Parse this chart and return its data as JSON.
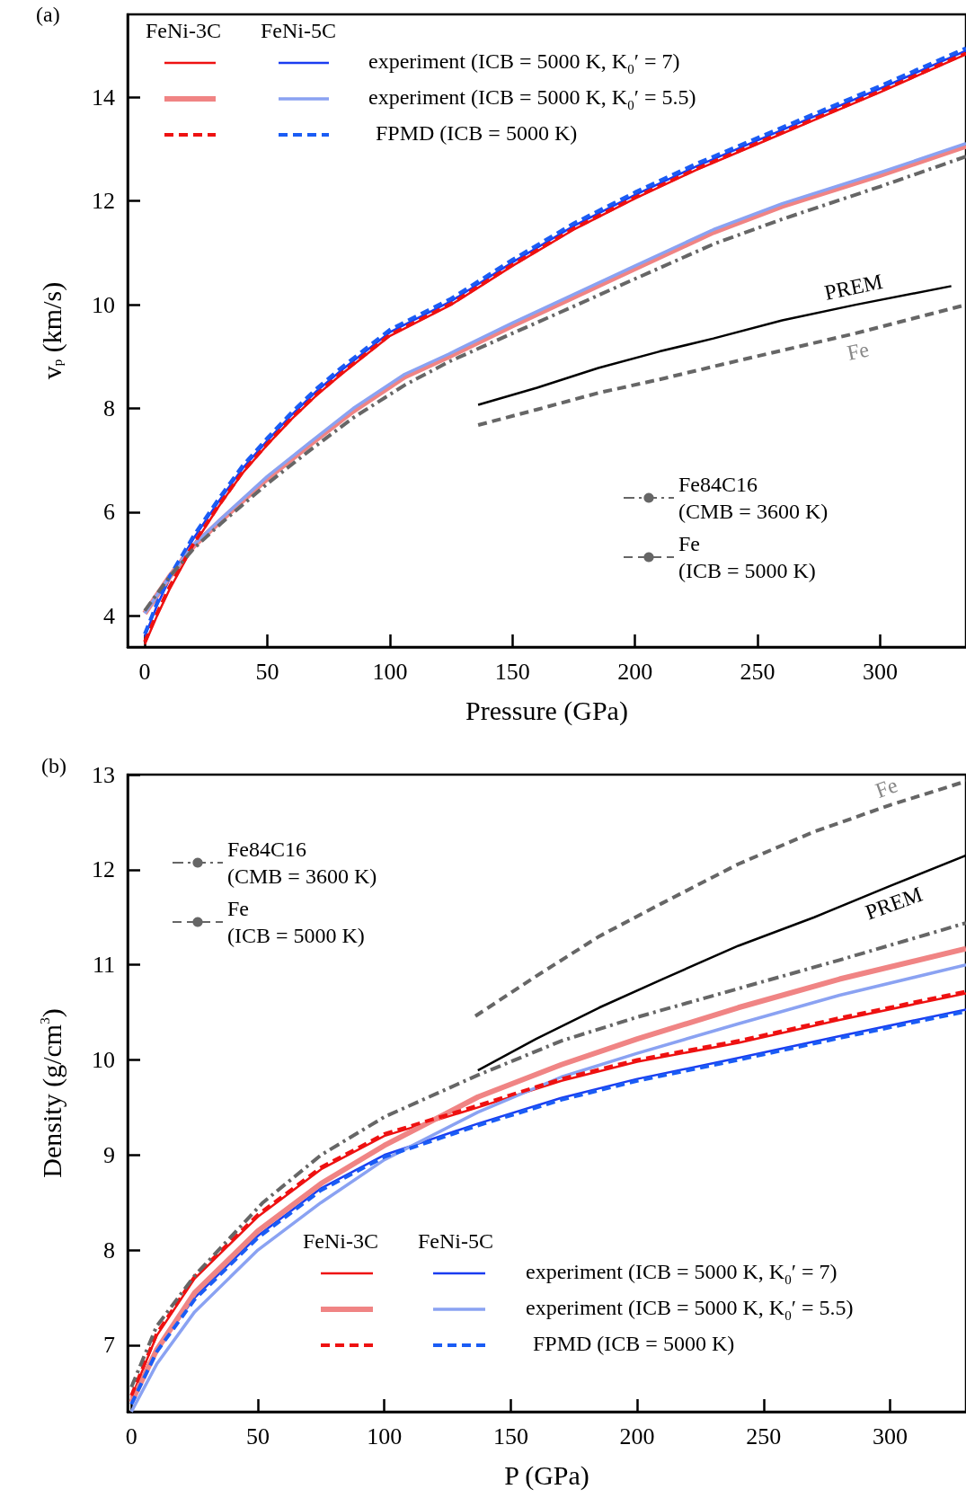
{
  "chart_data": [
    {
      "type": "line",
      "xlabel": "Pressure (GPa)",
      "ylabel": "v$_{p}$ (km/s)",
      "xlim": [
        -7,
        335
      ],
      "ylim": [
        3.4,
        15.6
      ],
      "xticks": [
        0,
        50,
        100,
        150,
        200,
        250,
        300
      ],
      "yticks": [
        4,
        6,
        8,
        10,
        12,
        14
      ],
      "grid": false,
      "marker": "none",
      "legend": "bottom right",
      "annotations": [
        "(a)",
        "FeNi-3C",
        "FeNi-5C",
        "experiment (ICB = 5000 K, K$_{0}$′ = 7)",
        "experiment (ICB = 5000 K, K$_{0}$′ = 5.5)",
        "FPMD (ICB = 5000 K)",
        "(CMB = 3600 K)",
        "(ICB = 5000 K)"
      ],
      "series": [
        {
          "color": "#ee1111",
          "line_style": "solid",
          "x": [
            0,
            5,
            10,
            20,
            30,
            40,
            50,
            60,
            70,
            80,
            100,
            125,
            150,
            175,
            200,
            225,
            250,
            275,
            300,
            335
          ],
          "values": [
            3.45,
            4.0,
            4.5,
            5.37,
            6.1,
            6.76,
            7.3,
            7.8,
            8.25,
            8.65,
            9.4,
            10.0,
            10.75,
            11.45,
            12.05,
            12.6,
            13.1,
            13.6,
            14.1,
            14.83
          ]
        },
        {
          "color": "#1a3cf0",
          "line_style": "solid",
          "x": [
            0,
            5,
            10,
            20,
            30,
            40,
            50,
            60,
            70,
            80,
            100,
            125,
            150,
            175,
            200,
            225,
            250,
            275,
            300,
            335
          ],
          "values": [
            3.6,
            4.2,
            4.7,
            5.5,
            6.2,
            6.85,
            7.38,
            7.88,
            8.33,
            8.73,
            9.47,
            10.07,
            10.82,
            11.52,
            12.12,
            12.67,
            13.17,
            13.67,
            14.17,
            14.9
          ]
        },
        {
          "color": "#f08484",
          "line_style": "solid",
          "x": [
            0,
            10,
            20,
            31,
            50,
            67,
            85,
            106,
            124,
            150,
            175,
            200,
            232,
            260,
            300,
            335
          ],
          "values": [
            4.05,
            4.75,
            5.35,
            5.84,
            6.65,
            7.29,
            7.95,
            8.61,
            9.0,
            9.6,
            10.15,
            10.7,
            11.4,
            11.9,
            12.5,
            13.06
          ]
        },
        {
          "color": "#8aa2f2",
          "line_style": "solid",
          "x": [
            0,
            10,
            20,
            31,
            50,
            67,
            85,
            106,
            124,
            150,
            175,
            200,
            232,
            260,
            300,
            335
          ],
          "values": [
            4.05,
            4.75,
            5.37,
            5.87,
            6.69,
            7.33,
            8.0,
            8.66,
            9.05,
            9.65,
            10.2,
            10.75,
            11.45,
            11.95,
            12.55,
            13.11
          ]
        },
        {
          "color": "#ee1111",
          "line_style": "dashed",
          "x": [
            0,
            5,
            10,
            20,
            30,
            40,
            50,
            60,
            70,
            80,
            100,
            125,
            150,
            175,
            200,
            225,
            250,
            275,
            300,
            335
          ],
          "values": [
            3.5,
            4.05,
            4.55,
            5.4,
            6.12,
            6.78,
            7.32,
            7.82,
            8.27,
            8.67,
            9.42,
            10.02,
            10.77,
            11.47,
            12.07,
            12.62,
            13.12,
            13.62,
            14.12,
            14.85
          ]
        },
        {
          "color": "#1a5cf5",
          "line_style": "dashed",
          "x": [
            0,
            5,
            10,
            20,
            30,
            40,
            50,
            60,
            70,
            80,
            100,
            125,
            150,
            175,
            200,
            225,
            250,
            275,
            300,
            335
          ],
          "values": [
            3.65,
            4.25,
            4.75,
            5.55,
            6.25,
            6.9,
            7.43,
            7.93,
            8.38,
            8.78,
            9.52,
            10.12,
            10.87,
            11.57,
            12.17,
            12.72,
            13.22,
            13.72,
            14.22,
            14.95
          ]
        },
        {
          "name": "Fe84C16",
          "color": "#666666",
          "line_style": "dashdot",
          "x": [
            0,
            10,
            20,
            31,
            50,
            67,
            85,
            106,
            124,
            150,
            175,
            200,
            232,
            260,
            300,
            335
          ],
          "values": [
            4.1,
            4.75,
            5.3,
            5.78,
            6.55,
            7.18,
            7.82,
            8.45,
            8.9,
            9.45,
            9.97,
            10.5,
            11.17,
            11.65,
            12.28,
            12.86
          ]
        },
        {
          "name": "Fe",
          "color": "#666666",
          "line_style": "dashed",
          "x": [
            136,
            160,
            185,
            210,
            232,
            260,
            290,
            335
          ],
          "values": [
            7.68,
            7.98,
            8.3,
            8.56,
            8.81,
            9.12,
            9.45,
            10.0
          ]
        },
        {
          "name": "PREM",
          "color": "#000000",
          "line_style": "solid",
          "x": [
            136,
            160,
            185,
            210,
            232,
            260,
            290,
            329
          ],
          "values": [
            8.07,
            8.4,
            8.78,
            9.1,
            9.35,
            9.7,
            10.0,
            10.36
          ]
        }
      ]
    },
    {
      "type": "line",
      "xlabel": "P (GPa)",
      "ylabel": "Density (g/cm$^{3}$)",
      "xlim": [
        -1.5,
        330
      ],
      "ylim": [
        6.3,
        13
      ],
      "xticks": [
        0,
        50,
        100,
        150,
        200,
        250,
        300
      ],
      "yticks": [
        7,
        8,
        9,
        10,
        11,
        12,
        13
      ],
      "grid": false,
      "marker": "none",
      "legend": "top left",
      "annotations": [
        "(b)",
        "FeNi-3C",
        "FeNi-5C",
        "experiment (ICB = 5000 K, K$_{0}$′ = 7)",
        "experiment (ICB = 5000 K, K$_{0}$′ = 5.5)",
        "FPMD (ICB = 5000 K)",
        "(CMB = 3600 K)",
        "(ICB = 5000 K)"
      ],
      "series": [
        {
          "color": "#ee1111",
          "line_style": "solid",
          "x": [
            0,
            10,
            25,
            50,
            75,
            100,
            137,
            170,
            200,
            240,
            280,
            330
          ],
          "values": [
            6.45,
            7.1,
            7.7,
            8.35,
            8.85,
            9.2,
            9.5,
            9.78,
            9.98,
            10.18,
            10.42,
            10.7
          ]
        },
        {
          "color": "#1a3cf0",
          "line_style": "solid",
          "x": [
            0,
            10,
            25,
            50,
            75,
            100,
            137,
            170,
            200,
            240,
            280,
            330
          ],
          "values": [
            6.4,
            6.95,
            7.5,
            8.15,
            8.65,
            9.0,
            9.33,
            9.6,
            9.8,
            10.02,
            10.25,
            10.53
          ]
        },
        {
          "color": "#f08484",
          "line_style": "solid",
          "x": [
            0,
            10,
            25,
            50,
            75,
            100,
            137,
            170,
            200,
            240,
            280,
            330
          ],
          "values": [
            6.4,
            6.95,
            7.55,
            8.2,
            8.7,
            9.1,
            9.61,
            9.95,
            10.22,
            10.55,
            10.85,
            11.17
          ]
        },
        {
          "color": "#8aa2f2",
          "line_style": "solid",
          "x": [
            0,
            10,
            25,
            50,
            75,
            100,
            137,
            170,
            200,
            240,
            280,
            330
          ],
          "values": [
            6.3,
            6.8,
            7.35,
            8.0,
            8.5,
            8.95,
            9.45,
            9.82,
            10.07,
            10.38,
            10.68,
            11.0
          ]
        },
        {
          "color": "#ee1111",
          "line_style": "dashed",
          "x": [
            0,
            10,
            25,
            50,
            75,
            100,
            137,
            170,
            200,
            240,
            280,
            330
          ],
          "values": [
            6.47,
            7.12,
            7.72,
            8.37,
            8.87,
            9.22,
            9.52,
            9.8,
            10.0,
            10.2,
            10.44,
            10.72
          ]
        },
        {
          "color": "#1a5cf5",
          "line_style": "dashed",
          "x": [
            0,
            10,
            25,
            50,
            75,
            100,
            137,
            170,
            200,
            240,
            280,
            330
          ],
          "values": [
            6.38,
            6.93,
            7.48,
            8.13,
            8.63,
            8.98,
            9.31,
            9.58,
            9.78,
            10.0,
            10.23,
            10.51
          ]
        },
        {
          "name": "Fe84C16",
          "color": "#666666",
          "line_style": "dashdot",
          "x": [
            0,
            10,
            25,
            52,
            75,
            100,
            137,
            170,
            200,
            240,
            280,
            330
          ],
          "values": [
            6.56,
            7.2,
            7.73,
            8.5,
            9.0,
            9.4,
            9.84,
            10.2,
            10.45,
            10.75,
            11.05,
            11.44
          ]
        },
        {
          "name": "Fe",
          "color": "#666666",
          "line_style": "dashed",
          "x": [
            136,
            160,
            185,
            210,
            240,
            270,
            300,
            330
          ],
          "values": [
            10.46,
            10.88,
            11.3,
            11.65,
            12.06,
            12.4,
            12.68,
            12.93
          ]
        },
        {
          "name": "PREM",
          "color": "#000000",
          "line_style": "solid",
          "x": [
            137,
            160,
            185,
            210,
            240,
            270,
            300,
            330
          ],
          "values": [
            9.89,
            10.22,
            10.55,
            10.85,
            11.2,
            11.5,
            11.83,
            12.15
          ]
        }
      ]
    }
  ]
}
